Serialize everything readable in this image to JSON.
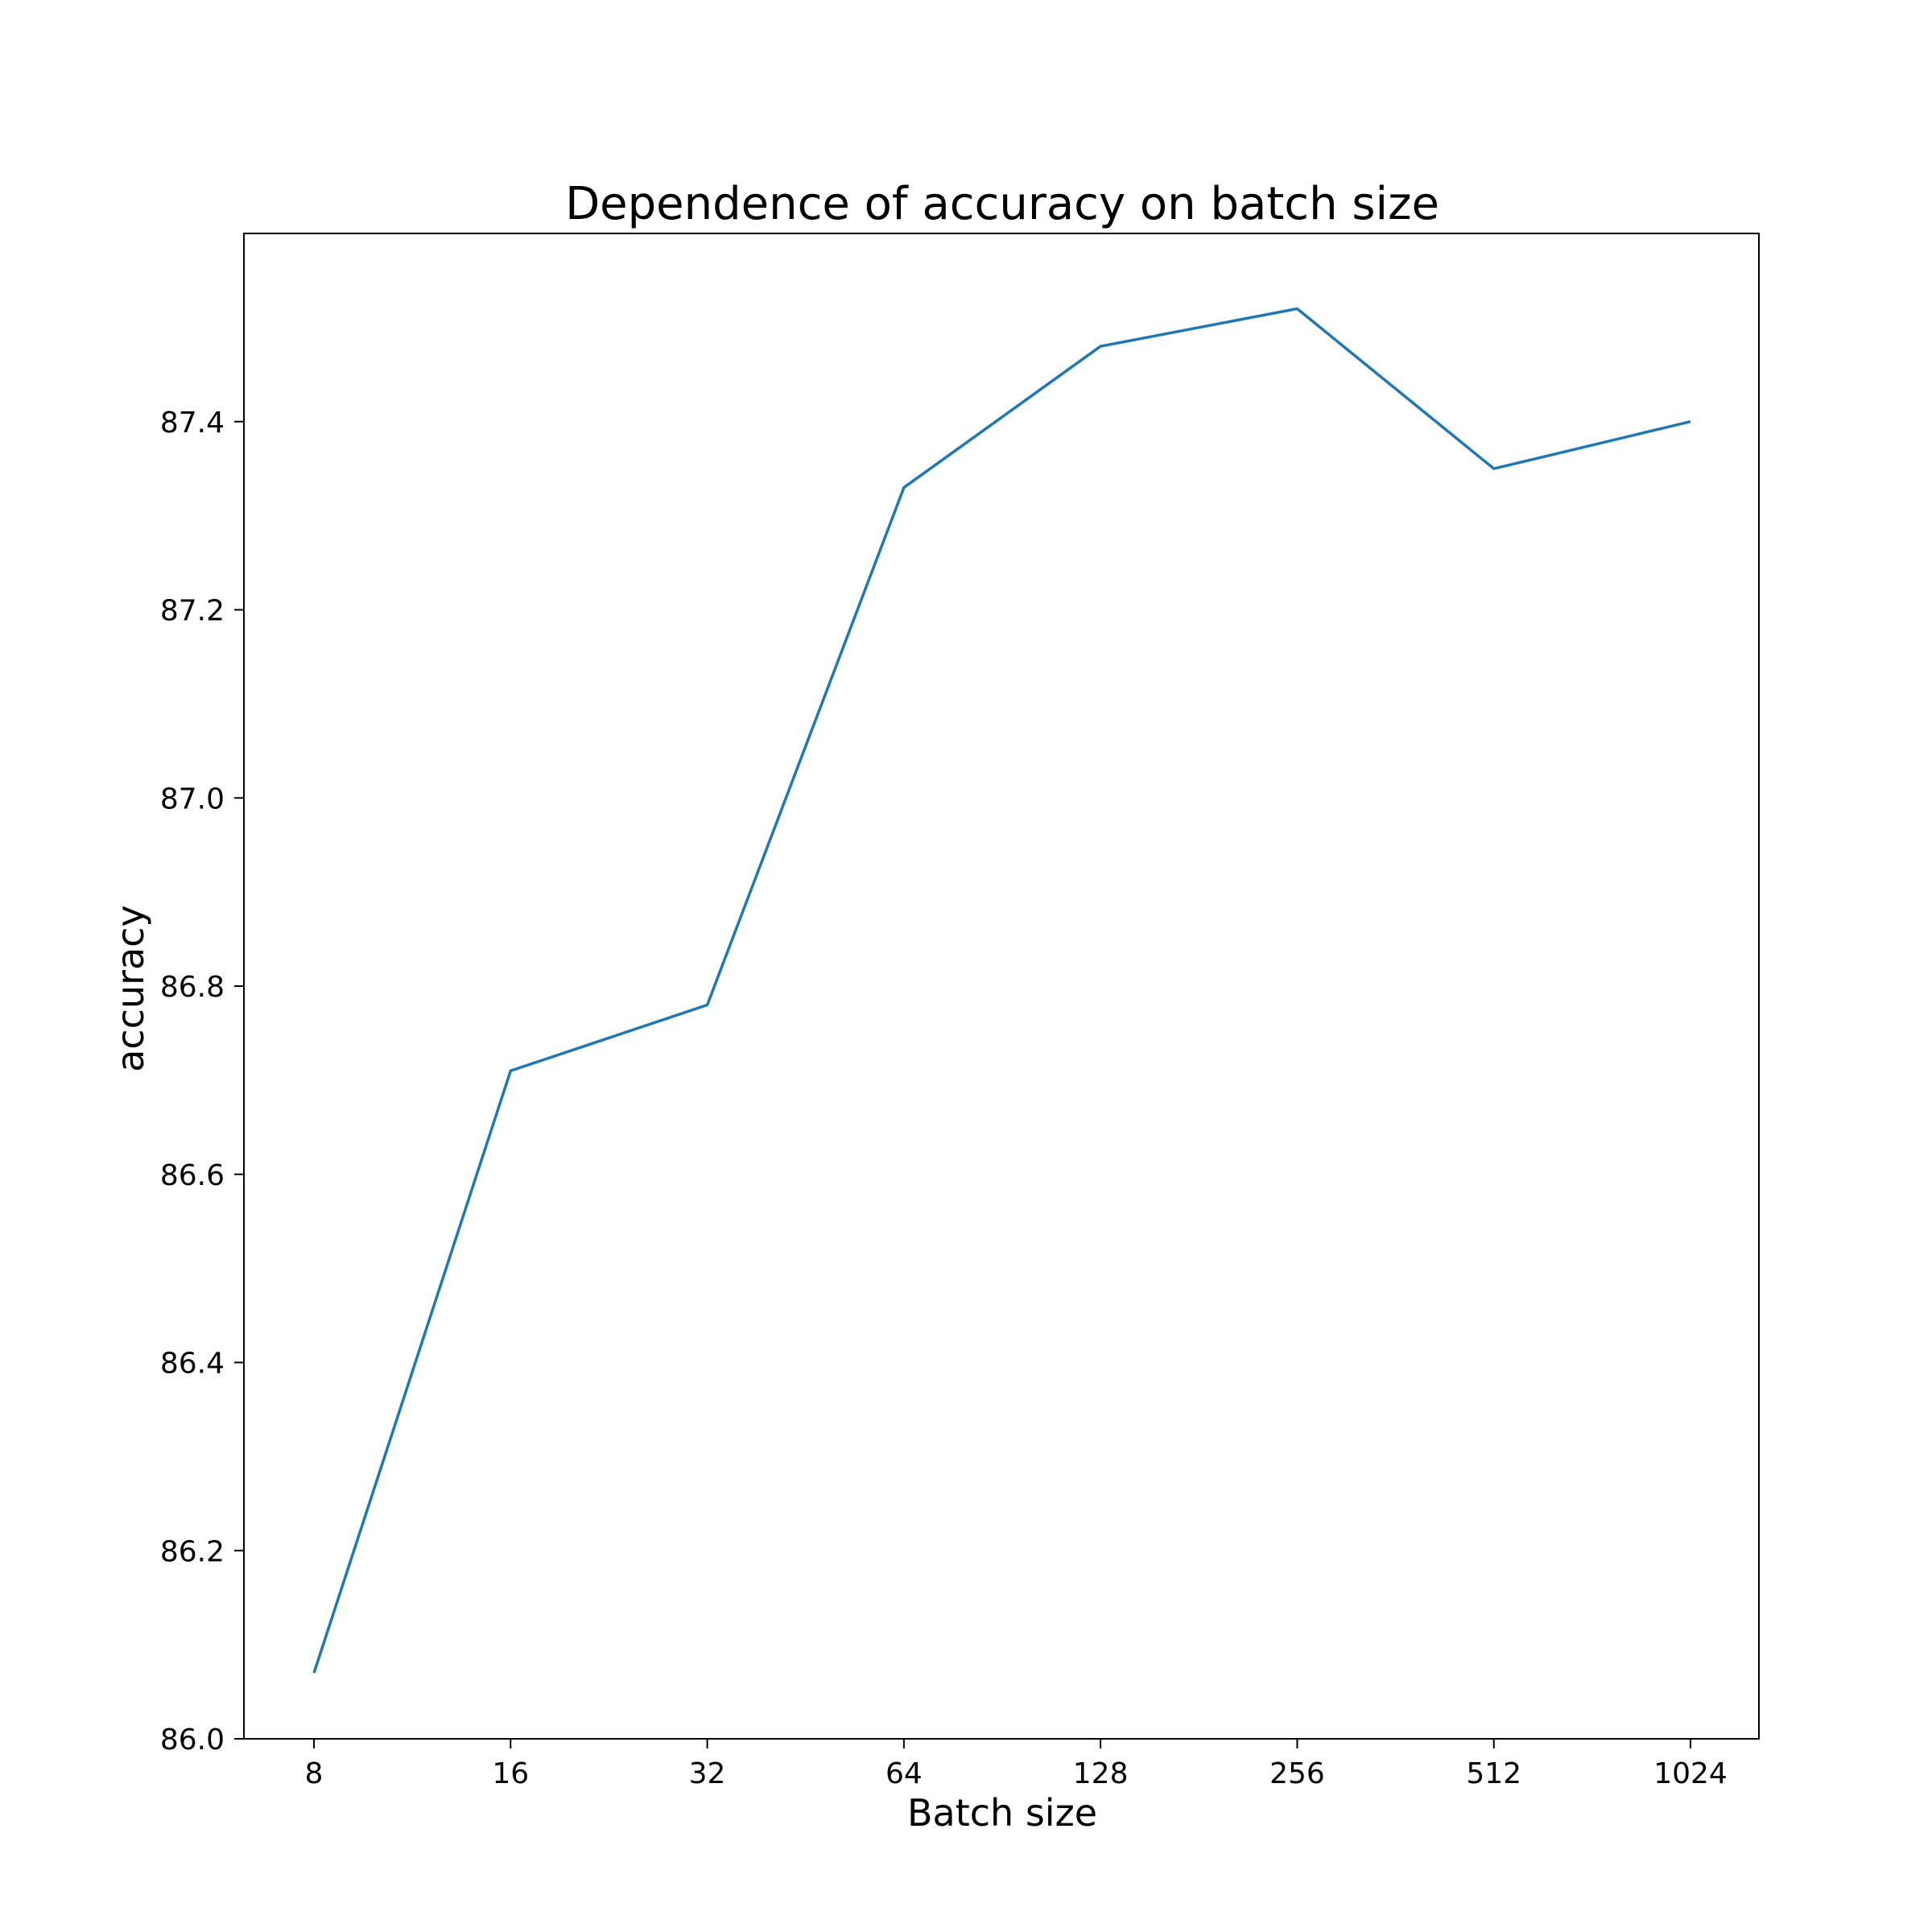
{
  "chart_data": {
    "type": "line",
    "title": "Dependence of accuracy on batch size",
    "xlabel": "Batch size",
    "ylabel": "accuracy",
    "x_scale": "log2",
    "categories": [
      "8",
      "16",
      "32",
      "64",
      "128",
      "256",
      "512",
      "1024"
    ],
    "x": [
      8,
      16,
      32,
      64,
      128,
      256,
      512,
      1024
    ],
    "series": [
      {
        "values": [
          86.07,
          86.71,
          86.78,
          87.33,
          87.48,
          87.52,
          87.35,
          87.4
        ],
        "color": "#1f77b4"
      }
    ],
    "ylim": [
      86.0,
      87.6
    ],
    "yticks": [
      "86.0",
      "86.2",
      "86.4",
      "86.6",
      "86.8",
      "87.0",
      "87.2",
      "87.4"
    ],
    "grid": false,
    "legend": "none"
  }
}
